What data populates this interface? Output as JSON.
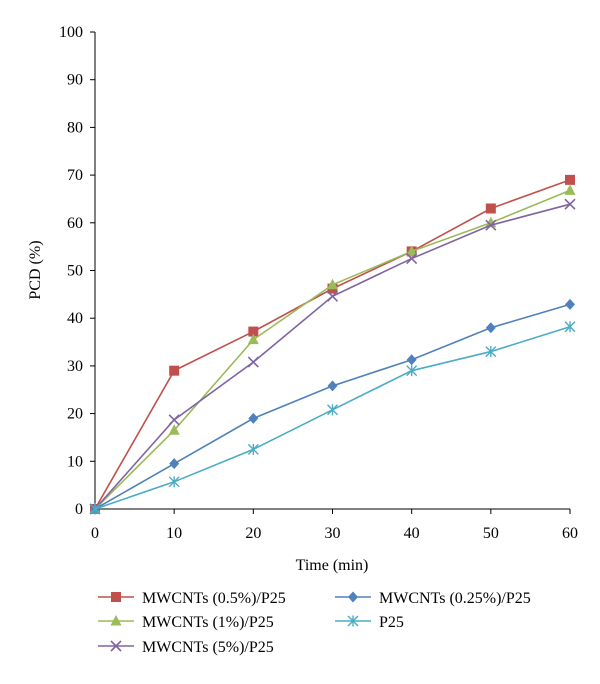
{
  "chart_data": {
    "type": "line",
    "title": "",
    "xlabel": "Time (min)",
    "ylabel": "PCD (%)",
    "x": [
      0,
      10,
      20,
      30,
      40,
      50,
      60
    ],
    "xlim": [
      0,
      60
    ],
    "ylim": [
      0,
      100
    ],
    "xticks": [
      "0",
      "10",
      "20",
      "30",
      "40",
      "50",
      "60"
    ],
    "yticks": [
      "0",
      "10",
      "20",
      "30",
      "40",
      "50",
      "60",
      "70",
      "80",
      "90",
      "100"
    ],
    "grid": false,
    "legend_position": "bottom",
    "series": [
      {
        "name": "MWCNTs (0.5%)/P25",
        "color": "#c0504d",
        "marker": "square",
        "values": [
          0,
          29,
          37.2,
          46.2,
          54,
          63,
          69
        ]
      },
      {
        "name": "MWCNTs (1%)/P25",
        "color": "#9bbb59",
        "marker": "triangle",
        "values": [
          0,
          16.5,
          35.5,
          47,
          54,
          60,
          66.8
        ]
      },
      {
        "name": "MWCNTs (5%)/P25",
        "color": "#8064a2",
        "marker": "x",
        "values": [
          0,
          18.7,
          30.8,
          44.6,
          52.5,
          59.5,
          63.9
        ]
      },
      {
        "name": "MWCNTs (0.25%)/P25",
        "color": "#4f81bd",
        "marker": "diamond",
        "values": [
          0,
          9.5,
          19,
          25.8,
          31.3,
          38,
          42.9
        ]
      },
      {
        "name": "P25",
        "color": "#4bacc6",
        "marker": "asterisk",
        "values": [
          0,
          5.7,
          12.5,
          20.8,
          29,
          33,
          38.2
        ]
      }
    ]
  }
}
